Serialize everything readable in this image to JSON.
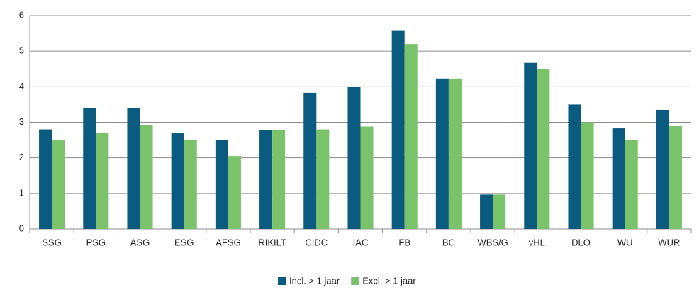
{
  "chart_data": {
    "type": "bar",
    "categories": [
      "SSG",
      "PSG",
      "ASG",
      "ESG",
      "AFSG",
      "RIKILT",
      "CIDC",
      "IAC",
      "FB",
      "BC",
      "WBS/G",
      "vHL",
      "DLO",
      "WU",
      "WUR"
    ],
    "series": [
      {
        "name": "Incl. > 1 jaar",
        "color": "#0b5a80",
        "values": [
          2.8,
          3.4,
          3.4,
          2.7,
          2.5,
          2.78,
          3.83,
          4.0,
          5.57,
          4.23,
          0.97,
          4.67,
          3.5,
          2.83,
          3.35
        ]
      },
      {
        "name": "Excl. > 1 jaar",
        "color": "#7ac36a",
        "values": [
          2.5,
          2.7,
          2.93,
          2.5,
          2.05,
          2.78,
          2.8,
          2.88,
          5.2,
          4.23,
          0.97,
          4.5,
          3.0,
          2.5,
          2.9
        ]
      }
    ],
    "ylim": [
      0,
      6
    ],
    "yticks": [
      0,
      1,
      2,
      3,
      4,
      5,
      6
    ],
    "grid": true,
    "legend": "bottom"
  }
}
